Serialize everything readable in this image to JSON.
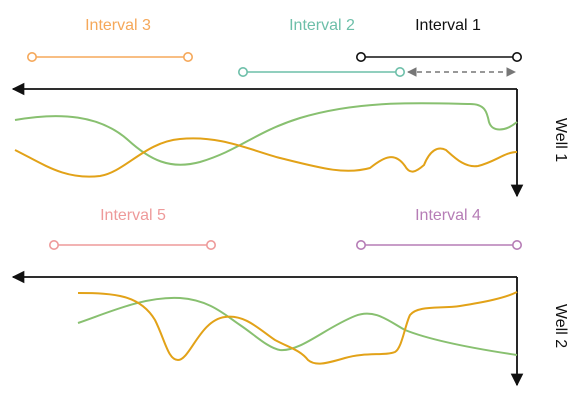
{
  "colors": {
    "interval_1": "#111111",
    "interval_2": "#6dbfa9",
    "interval_3": "#f5a85a",
    "interval_4": "#b67db6",
    "interval_5": "#ee9a9a",
    "green_curve": "#88c070",
    "orange_curve": "#e2a218",
    "axis": "#111111",
    "dashed_arrow": "#777777"
  },
  "well_1": {
    "label": "Well 1",
    "intervals": [
      {
        "label": "Interval 3",
        "color_key": "interval_3"
      },
      {
        "label": "Interval 2",
        "color_key": "interval_2"
      },
      {
        "label": "Interval 1",
        "color_key": "interval_1"
      }
    ]
  },
  "well_2": {
    "label": "Well 2",
    "intervals": [
      {
        "label": "Interval 5",
        "color_key": "interval_5"
      },
      {
        "label": "Interval 4",
        "color_key": "interval_4"
      }
    ]
  }
}
